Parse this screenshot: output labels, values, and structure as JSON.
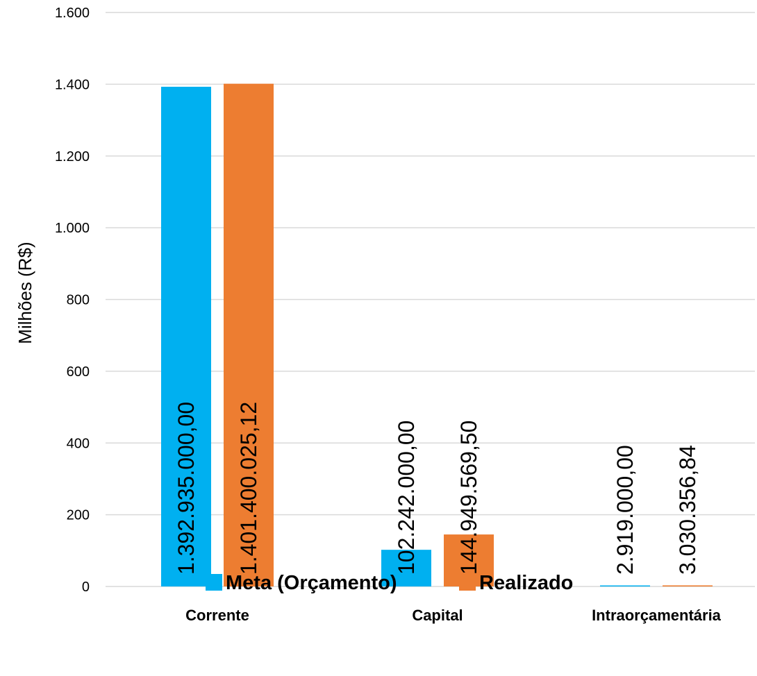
{
  "chart_data": {
    "type": "bar",
    "categories": [
      "Corrente",
      "Capital",
      "Intraorçamentária"
    ],
    "series": [
      {
        "name": "Meta (Orçamento)",
        "values": [
          1392.935,
          102.242,
          2.919
        ],
        "data_labels": [
          "1.392.935.000,00",
          "102.242.000,00",
          "2.919.000,00"
        ],
        "color": "#00B0F0"
      },
      {
        "name": "Realizado",
        "values": [
          1401.40002512,
          144.9495695,
          3.03035684
        ],
        "data_labels": [
          "1.401.400.025,12",
          "144.949.569,50",
          "3.030.356,84"
        ],
        "color": "#ED7D31"
      }
    ],
    "ylabel": "Milhões (R$)",
    "xlabel": "",
    "ylim": [
      0,
      1600
    ],
    "yticks": [
      0,
      200,
      400,
      600,
      800,
      1000,
      1200,
      1400,
      1600
    ],
    "ytick_labels": [
      "0",
      "200",
      "400",
      "600",
      "800",
      "1.000",
      "1.200",
      "1.400",
      "1.600"
    ],
    "grid": true,
    "legend_position": "bottom",
    "gridline_color": "#D9D9D9"
  }
}
